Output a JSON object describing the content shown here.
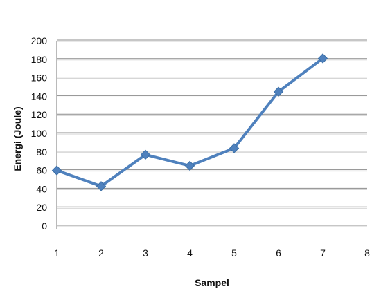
{
  "chart_data": {
    "type": "line",
    "title": "",
    "xlabel": "Sampel",
    "ylabel": "Energi (Joule)",
    "x": [
      1,
      2,
      3,
      4,
      5,
      6,
      7
    ],
    "x_ticks": [
      1,
      2,
      3,
      4,
      5,
      6,
      7,
      8
    ],
    "xlim": [
      1,
      8
    ],
    "ylim": [
      0,
      200
    ],
    "y_ticks": [
      0,
      20,
      40,
      60,
      80,
      100,
      120,
      140,
      160,
      180,
      200
    ],
    "grid": true,
    "legend": "none",
    "series": [
      {
        "values": [
          60,
          43,
          77,
          65,
          84,
          145,
          181
        ],
        "color": "#4f81bd",
        "marker": "diamond"
      }
    ]
  }
}
